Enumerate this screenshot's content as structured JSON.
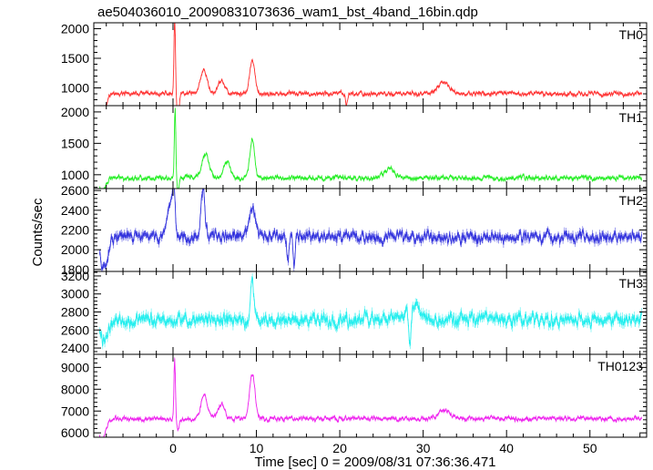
{
  "title": "ae504036010_20090831073636_wam1_bst_4band_16bin.qdp",
  "chart_data": {
    "type": "line",
    "title": "ae504036010_20090831073636_wam1_bst_4band_16bin.qdp",
    "xlabel": "Time [sec] 0 = 2009/08/31 07:36:36.471",
    "ylabel": "Counts/sec",
    "xlim": [
      -9.5,
      56.8
    ],
    "x_ticks": [
      0,
      10,
      20,
      30,
      40,
      50
    ],
    "grid": false,
    "legend": "none",
    "panels": [
      {
        "name": "TH0",
        "color": "#ff3030",
        "ylim": [
          700,
          2100
        ],
        "y_ticks": [
          1000,
          1500,
          2000
        ],
        "baseline": 900,
        "noise": 55,
        "features": [
          {
            "t": -8.5,
            "dv": -300,
            "w": 0.6
          },
          {
            "t": 0.2,
            "dv": 1300,
            "w": 0.12
          },
          {
            "t": 0.6,
            "dv": -400,
            "w": 0.2
          },
          {
            "t": 3.7,
            "dv": 380,
            "w": 0.55
          },
          {
            "t": 5.8,
            "dv": 230,
            "w": 0.55
          },
          {
            "t": 9.5,
            "dv": 560,
            "w": 0.45
          },
          {
            "t": 32.5,
            "dv": 180,
            "w": 1.0
          },
          {
            "t": 20.8,
            "dv": -200,
            "w": 0.15
          }
        ]
      },
      {
        "name": "TH1",
        "color": "#22ee22",
        "ylim": [
          780,
          2100
        ],
        "y_ticks": [
          1000,
          1500,
          2000
        ],
        "baseline": 950,
        "noise": 55,
        "features": [
          {
            "t": -8.5,
            "dv": -200,
            "w": 0.6
          },
          {
            "t": 0.25,
            "dv": 1150,
            "w": 0.12
          },
          {
            "t": 0.6,
            "dv": -200,
            "w": 0.2
          },
          {
            "t": 3.9,
            "dv": 380,
            "w": 0.6
          },
          {
            "t": 6.5,
            "dv": 250,
            "w": 0.55
          },
          {
            "t": 9.5,
            "dv": 630,
            "w": 0.4
          },
          {
            "t": 26,
            "dv": 150,
            "w": 0.8
          }
        ]
      },
      {
        "name": "TH2",
        "color": "#3333dd",
        "ylim": [
          1780,
          2620
        ],
        "y_ticks": [
          1800,
          2000,
          2200,
          2400,
          2600
        ],
        "baseline": 2130,
        "noise": 85,
        "features": [
          {
            "t": -8.3,
            "dv": -330,
            "w": 0.6
          },
          {
            "t": -0.3,
            "dv": 280,
            "w": 0.5
          },
          {
            "t": 0.1,
            "dv": 420,
            "w": 0.2
          },
          {
            "t": 3.6,
            "dv": 460,
            "w": 0.35
          },
          {
            "t": 9.5,
            "dv": 300,
            "w": 0.5
          },
          {
            "t": 13.8,
            "dv": -250,
            "w": 0.2
          },
          {
            "t": 14.5,
            "dv": -280,
            "w": 0.15
          }
        ]
      },
      {
        "name": "TH3",
        "color": "#22eeee",
        "ylim": [
          2330,
          3250
        ],
        "y_ticks": [
          2400,
          2600,
          2800,
          3000,
          3200
        ],
        "baseline": 2710,
        "noise": 110,
        "features": [
          {
            "t": -8.3,
            "dv": -250,
            "w": 0.6
          },
          {
            "t": 9.5,
            "dv": 450,
            "w": 0.25
          },
          {
            "t": 28.4,
            "dv": -350,
            "w": 0.2
          },
          {
            "t": 29,
            "dv": 150,
            "w": 1.2
          }
        ]
      },
      {
        "name": "TH0123",
        "color": "#ee22ee",
        "ylim": [
          5800,
          9600
        ],
        "y_ticks": [
          6000,
          7000,
          8000,
          9000
        ],
        "baseline": 6650,
        "noise": 150,
        "features": [
          {
            "t": -8.5,
            "dv": -1000,
            "w": 0.6
          },
          {
            "t": 0.2,
            "dv": 2800,
            "w": 0.12
          },
          {
            "t": 0.6,
            "dv": -500,
            "w": 0.2
          },
          {
            "t": 3.7,
            "dv": 1050,
            "w": 0.55
          },
          {
            "t": 5.8,
            "dv": 650,
            "w": 0.55
          },
          {
            "t": 9.5,
            "dv": 2100,
            "w": 0.45
          },
          {
            "t": 32.5,
            "dv": 350,
            "w": 1.0
          }
        ]
      }
    ]
  }
}
